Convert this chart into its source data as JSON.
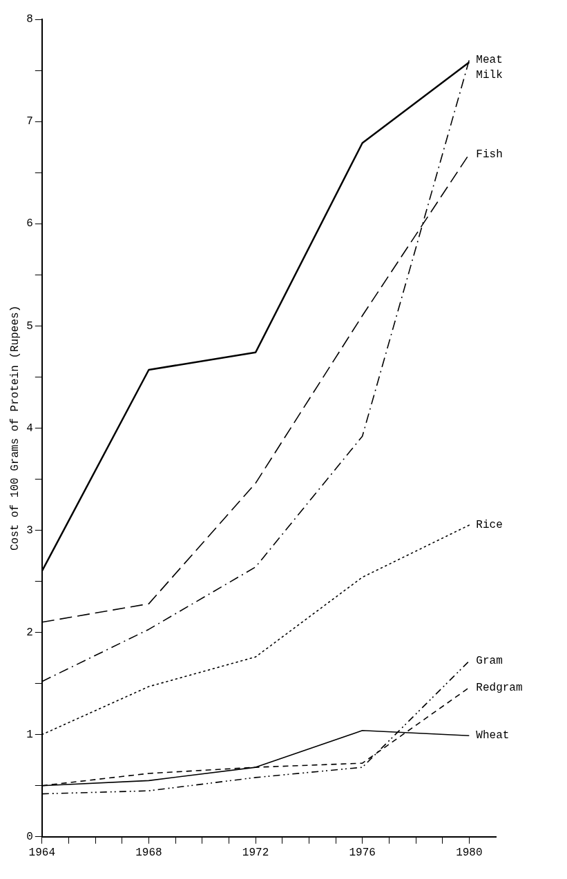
{
  "chart_data": {
    "type": "line",
    "ylabel": "Cost of 100 Grams of Protein (Rupees)",
    "x": [
      1964,
      1968,
      1972,
      1976,
      1980
    ],
    "series": [
      {
        "name": "Milk",
        "color": "#000000",
        "line_style": "solid",
        "values": [
          2.6,
          4.57,
          4.74,
          6.79,
          7.58
        ]
      },
      {
        "name": "Meat",
        "color": "#000000",
        "line_style": "dashed",
        "values": [
          1.52,
          2.03,
          2.64,
          3.92,
          7.6
        ]
      },
      {
        "name": "Fish",
        "color": "#000000",
        "line_style": "dashed",
        "values": [
          2.1,
          2.28,
          3.46,
          5.1,
          6.68
        ]
      },
      {
        "name": "Rice",
        "color": "#000000",
        "line_style": "dotted",
        "values": [
          1.0,
          1.47,
          1.76,
          2.54,
          3.05
        ]
      },
      {
        "name": "Gram",
        "color": "#000000",
        "line_style": "dashed",
        "values": [
          0.42,
          0.45,
          0.58,
          0.68,
          1.72
        ]
      },
      {
        "name": "Redgram",
        "color": "#000000",
        "line_style": "dashed",
        "values": [
          0.5,
          0.62,
          0.68,
          0.72,
          1.46
        ]
      },
      {
        "name": "Wheat",
        "color": "#000000",
        "line_style": "solid",
        "values": [
          0.5,
          0.55,
          0.68,
          1.04,
          0.99
        ]
      }
    ],
    "xlim": [
      1964,
      1981
    ],
    "xticks": [
      1964,
      {
        "value": 1965,
        "label": null
      },
      {
        "value": 1966,
        "label": null
      },
      {
        "value": 1967,
        "label": null
      },
      1968,
      {
        "value": 1969,
        "label": null
      },
      {
        "value": 1970,
        "label": null
      },
      {
        "value": 1971,
        "label": null
      },
      1972,
      {
        "value": 1973,
        "label": null
      },
      {
        "value": 1974,
        "label": null
      },
      {
        "value": 1975,
        "label": null
      },
      1976,
      {
        "value": 1977,
        "label": null
      },
      {
        "value": 1978,
        "label": null
      },
      {
        "value": 1979,
        "label": null
      },
      1980
    ],
    "ylim": [
      0,
      8
    ],
    "yticks": [
      0,
      {
        "value": 0.5,
        "label": null
      },
      1,
      {
        "value": 1.5,
        "label": null
      },
      2,
      {
        "value": 2.5,
        "label": null
      },
      3,
      {
        "value": 3.5,
        "label": null
      },
      4,
      {
        "value": 4.5,
        "label": null
      },
      5,
      {
        "value": 5.5,
        "label": null
      },
      6,
      {
        "value": 6.5,
        "label": null
      },
      7,
      {
        "value": 7.5,
        "label": null
      },
      8
    ],
    "grid": false,
    "legend": false,
    "marker": "none"
  }
}
